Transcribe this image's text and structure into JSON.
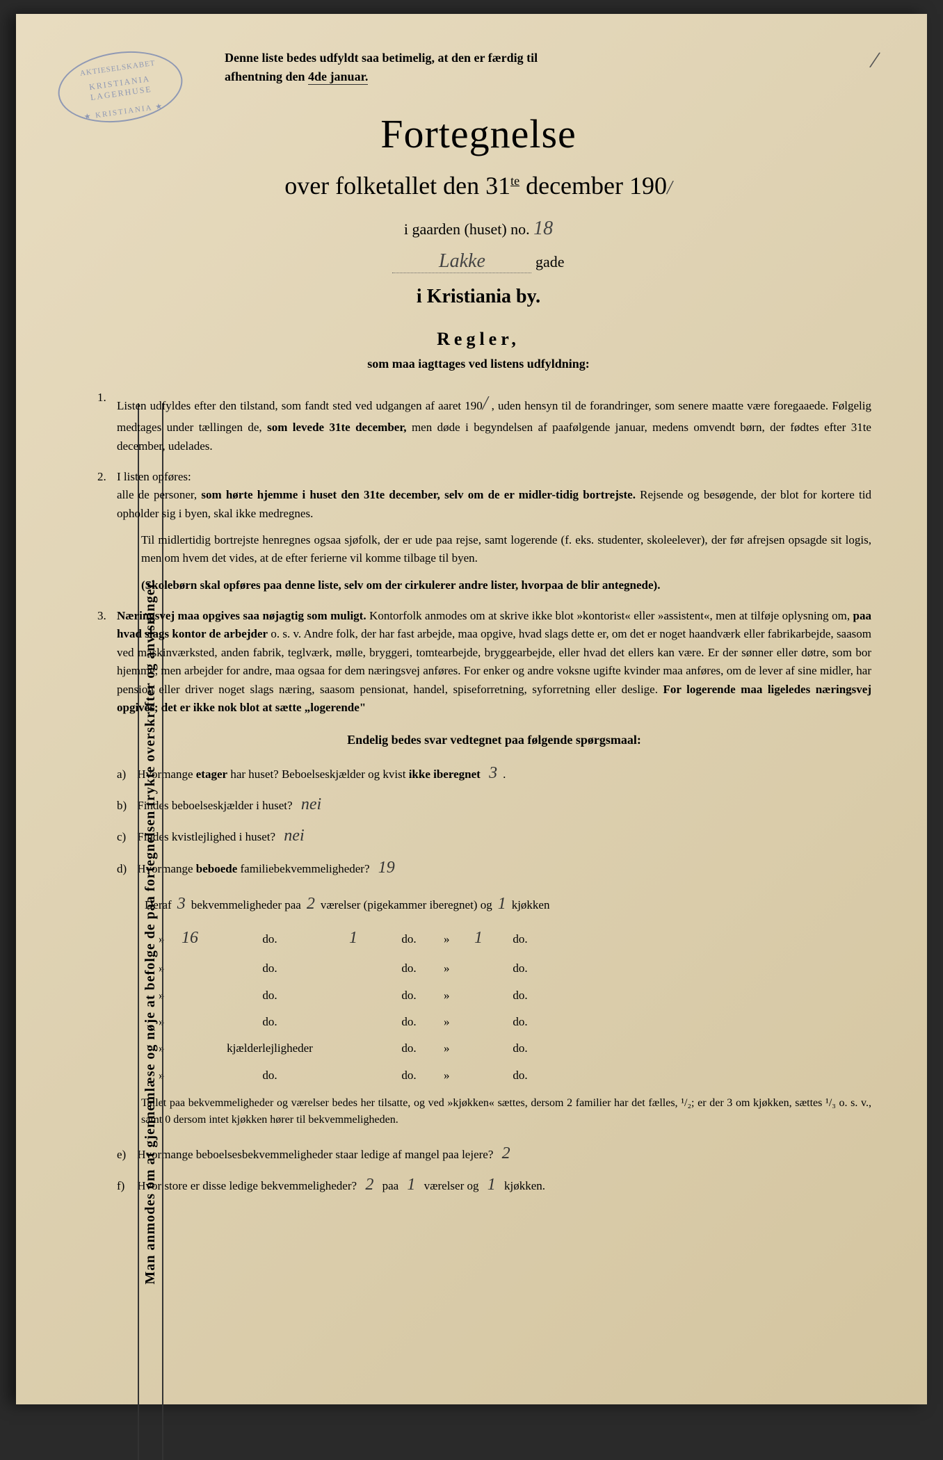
{
  "stamp": {
    "line1": "AKTIESELSKABET",
    "line2": "KRISTIANIA LAGERHUSE",
    "line3": "★ KRISTIANIA ★"
  },
  "topNotice": {
    "line1": "Denne liste bedes udfyldt saa betimelig, at den er færdig til",
    "line2_prefix": "afhentning den ",
    "line2_underlined": "4de januar."
  },
  "mainTitle": "Fortegnelse",
  "subtitle": {
    "prefix": "over folketallet den 31",
    "sup": "te",
    "suffix": " december 190",
    "handwritten": "/"
  },
  "houseLine": {
    "prefix": "i gaarden (huset) no. ",
    "handwritten": "18"
  },
  "streetLine": {
    "handwritten": "Lakke",
    "suffix": " gade"
  },
  "cityLine": "i Kristiania by.",
  "rulesTitle": "Regler,",
  "rulesSubtitle": "som maa iagttages ved listens udfyldning:",
  "verticalText": "Man anmodes om at gjennemlæse og nøje at befolge de paa fortegnelsen trykte overskrifter og anvisninger.",
  "rule1": {
    "num": "1.",
    "text1": "Listen udfyldes efter den tilstand, som fandt sted ved udgangen af aaret 190",
    "hw1": "/",
    "text2": " , uden hensyn til de forandringer, som senere maatte være foregaaede. Følgelig medtages under tællingen de, ",
    "bold1": "som levede 31te december,",
    "text3": " men døde i begyndelsen af paafølgende januar, medens omvendt børn, der fødtes efter 31te december, udelades."
  },
  "rule2": {
    "num": "2.",
    "intro": "I listen opføres:",
    "text1": "alle de personer, ",
    "bold1": "som hørte hjemme i huset den 31te december, selv om de er midler-tidig bortrejste.",
    "text2": " Rejsende og besøgende, der blot for kortere tid opholder sig i byen, skal ikke medregnes.",
    "para2": "Til midlertidig bortrejste henregnes ogsaa sjøfolk, der er ude paa rejse, samt logerende (f. eks. studenter, skoleelever), der før afrejsen opsagde sit logis, men om hvem det vides, at de efter ferierne vil komme tilbage til byen.",
    "bold2": "(Skolebørn skal opføres paa denne liste, selv om der cirkulerer andre lister, hvorpaa de blir antegnede)."
  },
  "rule3": {
    "num": "3.",
    "bold1": "Næringsvej maa opgives saa nøjagtig som muligt.",
    "text1": " Kontorfolk anmodes om at skrive ikke blot »kontorist« eller »assistent«, men at tilføje oplysning om, ",
    "bold2": "paa hvad slags kontor de arbejder",
    "text2": " o. s. v. Andre folk, der har fast arbejde, maa opgive, hvad slags dette er, om det er noget haandværk eller fabrikarbejde, saasom ved maskinværksted, anden fabrik, teglværk, mølle, bryggeri, tomtearbejde, bryggearbejde, eller hvad det ellers kan være. Er der sønner eller døtre, som bor hjemme, men arbejder for andre, maa ogsaa for dem næringsvej anføres. For enker og andre voksne ugifte kvinder maa anføres, om de lever af sine midler, har pension eller driver noget slags næring, saasom pensionat, handel, spiseforretning, syforretning eller deslige. ",
    "bold3": "For logerende maa ligeledes næringsvej opgives; det er ikke nok blot at sætte „logerende\""
  },
  "questionsTitle": "Endelig bedes svar vedtegnet paa følgende spørgsmaal:",
  "qa": {
    "label": "a)",
    "text1": "Hvormange ",
    "bold": "etager",
    "text2": " har huset? Beboelseskjælder og kvist ",
    "bold2": "ikke iberegnet",
    "answer": "3",
    "dot": "."
  },
  "qb": {
    "label": "b)",
    "text": "Findes beboelseskjælder i huset?",
    "answer": "nei"
  },
  "qc": {
    "label": "c)",
    "text": "Findes kvistlejlighed i huset?",
    "answer": "nei"
  },
  "qd": {
    "label": "d)",
    "text1": "Hvormange ",
    "bold": "beboede",
    "text2": " familiebekvemmeligheder?",
    "answer": "19"
  },
  "tableHeader": {
    "prefix": "Deraf ",
    "hw1": "3",
    "mid1": " bekvemmeligheder paa ",
    "hw2": "2",
    "mid2": " værelser (pigekammer iberegnet) og ",
    "hw3": "1",
    "suffix": " kjøkken"
  },
  "tableRows": [
    {
      "c1": "16",
      "c2": "do.",
      "c3": "1",
      "c4": "do.",
      "c5": "",
      "c6": "1",
      "c7": "do."
    },
    {
      "c1": "",
      "c2": "do.",
      "c3": "",
      "c4": "do.",
      "c5": "",
      "c6": "",
      "c7": "do."
    },
    {
      "c1": "",
      "c2": "do.",
      "c3": "",
      "c4": "do.",
      "c5": "",
      "c6": "",
      "c7": "do."
    },
    {
      "c1": "",
      "c2": "do.",
      "c3": "",
      "c4": "do.",
      "c5": "",
      "c6": "",
      "c7": "do."
    },
    {
      "c1": "",
      "c2": "kjælderlejligheder",
      "c3": "",
      "c4": "do.",
      "c5": "",
      "c6": "",
      "c7": "do."
    },
    {
      "c1": "",
      "c2": "do.",
      "c3": "",
      "c4": "do.",
      "c5": "",
      "c6": "",
      "c7": "do."
    }
  ],
  "footnote": "Tallet paa bekvemmeligheder og værelser bedes her tilsatte, og ved »kjøkken« sættes, dersom 2 familier har det fælles, ¹/₂; er der 3 om kjøkken, sættes ¹/₃ o. s. v., samt 0 dersom intet kjøkken hører til bekvemmeligheden.",
  "qe": {
    "label": "e)",
    "text": "Hvormange beboelsesbekvemmeligheder staar ledige af mangel paa lejere?",
    "answer": "2"
  },
  "qf": {
    "label": "f)",
    "text": "Hvor store er disse ledige bekvemmeligheder?",
    "hw1": "2",
    "mid1": " paa ",
    "hw2": "1",
    "mid2": " værelser og ",
    "hw3": "1",
    "suffix": " kjøkken."
  },
  "slashMark": "/"
}
